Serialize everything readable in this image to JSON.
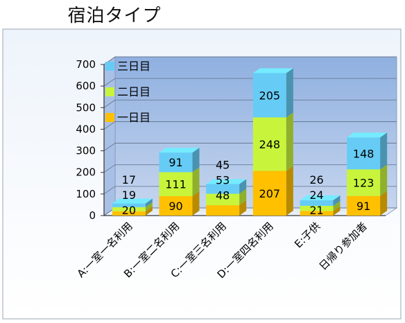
{
  "chart_data": {
    "type": "bar",
    "stacked": true,
    "three_d": true,
    "title": "宿泊タイプ",
    "categories": [
      "A:一室一名利用",
      "B:一室二名利用",
      "C:一室三名利用",
      "D:一室四名利用",
      "E:子供",
      "日帰り参加者"
    ],
    "series": [
      {
        "name": "一日目",
        "values": [
          20,
          90,
          48,
          207,
          21,
          91
        ],
        "color": "#FFC000"
      },
      {
        "name": "二日目",
        "values": [
          19,
          111,
          53,
          248,
          24,
          123
        ],
        "color": "#C8F53C"
      },
      {
        "name": "三日目",
        "values": [
          17,
          91,
          45,
          205,
          26,
          148
        ],
        "color": "#66CCF5"
      }
    ],
    "ylim": [
      0,
      700
    ],
    "yticks": [
      0,
      100,
      200,
      300,
      400,
      500,
      600,
      700
    ],
    "xlabel": "",
    "ylabel": "",
    "grid": true,
    "legend_position": "top-left",
    "data_labels": true
  }
}
